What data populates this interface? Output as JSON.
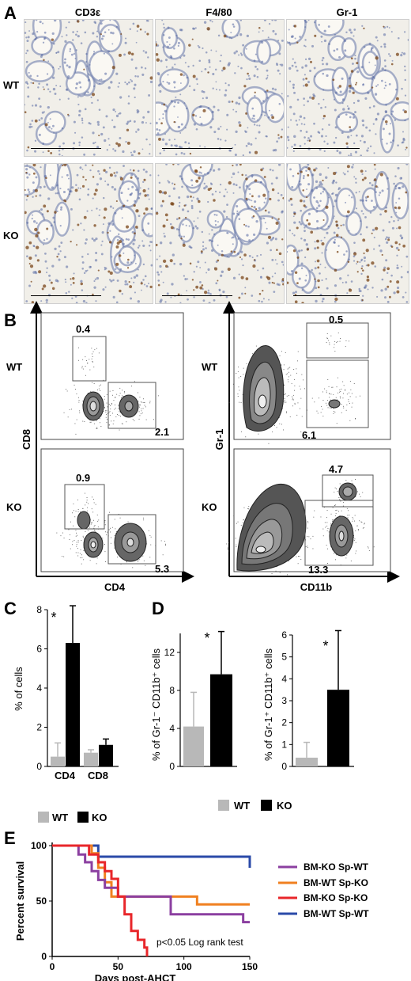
{
  "panelA": {
    "label": "A",
    "columns": [
      "CD3ε",
      "F4/80",
      "Gr-1"
    ],
    "rows": [
      "WT",
      "KO"
    ]
  },
  "panelB": {
    "label": "B",
    "left": {
      "xlabel": "CD4",
      "ylabel": "CD8",
      "WT": {
        "upper": "0.4",
        "lower": "2.1"
      },
      "KO": {
        "upper": "0.9",
        "lower": "5.3"
      }
    },
    "right": {
      "xlabel": "CD11b",
      "ylabel": "Gr-1",
      "WT": {
        "upper": "0.5",
        "lower": "6.1"
      },
      "KO": {
        "upper": "4.7",
        "lower": "13.3"
      }
    },
    "rows": [
      "WT",
      "KO"
    ]
  },
  "panelC": {
    "label": "C"
  },
  "panelD": {
    "label": "D"
  },
  "panelE": {
    "label": "E"
  },
  "legendCD": {
    "wt": "WT",
    "ko": "KO"
  },
  "colors": {
    "wt": "#b8b8b8",
    "ko": "#000000",
    "purple": "#8b3fa0",
    "orange": "#f08020",
    "red": "#e8262a",
    "blue": "#2a4aa8"
  },
  "chart_data": [
    {
      "type": "bar",
      "panel": "C",
      "ylabel": "% of cells",
      "categories": [
        "CD4",
        "CD8"
      ],
      "ylim": [
        0,
        8
      ],
      "yticks": [
        0,
        2,
        4,
        6,
        8
      ],
      "series": [
        {
          "name": "WT",
          "values": [
            0.5,
            0.7
          ],
          "errors": [
            0.7,
            0.15
          ]
        },
        {
          "name": "KO",
          "values": [
            6.3,
            1.1
          ],
          "errors": [
            1.9,
            0.3
          ]
        }
      ],
      "annotations": [
        "*"
      ]
    },
    {
      "type": "bar",
      "panel": "D-left",
      "ylabel": "% of Gr-1⁻ CD11b⁺ cells",
      "categories": [
        "WT",
        "KO"
      ],
      "ylim": [
        0,
        14
      ],
      "yticks": [
        0,
        4,
        8,
        12
      ],
      "values": [
        4.2,
        9.7
      ],
      "errors": [
        3.6,
        4.5
      ],
      "annotations": [
        "*"
      ]
    },
    {
      "type": "bar",
      "panel": "D-right",
      "ylabel": "% of Gr-1⁺ CD11b⁺ cells",
      "categories": [
        "WT",
        "KO"
      ],
      "ylim": [
        0,
        6
      ],
      "yticks": [
        0,
        1,
        2,
        3,
        4,
        5,
        6
      ],
      "values": [
        0.4,
        3.5
      ],
      "errors": [
        0.7,
        2.7
      ],
      "annotations": [
        "*"
      ]
    },
    {
      "type": "line",
      "panel": "E",
      "xlabel": "Days post-AHCT",
      "ylabel": "Percent survival",
      "xlim": [
        0,
        150
      ],
      "ylim": [
        0,
        100
      ],
      "xticks": [
        0,
        50,
        100,
        150
      ],
      "yticks": [
        0,
        50,
        100
      ],
      "annotation": "p<0.05 Log rank test",
      "series": [
        {
          "name": "BM-KO Sp-WT",
          "color": "#8b3fa0",
          "x": [
            0,
            15,
            20,
            25,
            30,
            35,
            40,
            50,
            55,
            75,
            90,
            145,
            150
          ],
          "y": [
            100,
            100,
            92,
            85,
            77,
            69,
            62,
            54,
            54,
            54,
            38,
            31,
            31
          ]
        },
        {
          "name": "BM-WT Sp-KO",
          "color": "#f08020",
          "x": [
            0,
            25,
            30,
            35,
            40,
            45,
            110,
            150
          ],
          "y": [
            100,
            100,
            93,
            80,
            67,
            54,
            47,
            47
          ]
        },
        {
          "name": "BM-KO Sp-KO",
          "color": "#e8262a",
          "x": [
            0,
            20,
            28,
            35,
            40,
            45,
            50,
            55,
            60,
            65,
            70,
            72
          ],
          "y": [
            100,
            100,
            92,
            85,
            77,
            70,
            54,
            38,
            23,
            15,
            8,
            0
          ]
        },
        {
          "name": "BM-WT Sp-WT",
          "color": "#2a4aa8",
          "x": [
            0,
            30,
            35,
            145,
            150
          ],
          "y": [
            100,
            100,
            90,
            90,
            80
          ]
        }
      ]
    }
  ]
}
